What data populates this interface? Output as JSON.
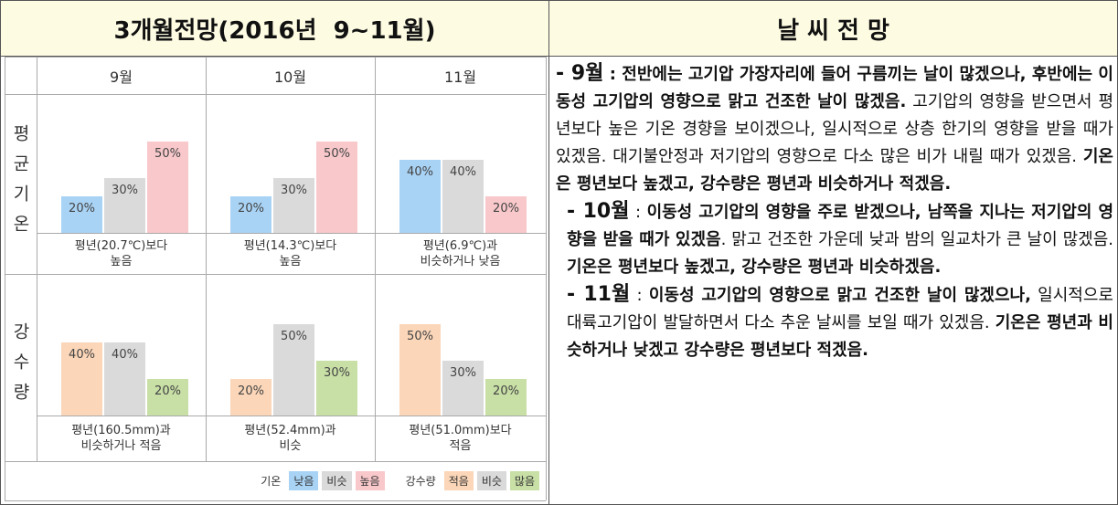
{
  "header": {
    "left": "3개월전망(2016년  9~11월)",
    "right": "날 씨 전 망"
  },
  "outlook": {
    "months": [
      "9월",
      "10월",
      "11월"
    ],
    "rows": [
      {
        "label": "평균기온",
        "legend": 0,
        "cells": [
          {
            "values": [
              20,
              30,
              50
            ],
            "value_labels": [
              "20%",
              "30%",
              "50%"
            ],
            "caption": "평년(20.7℃)보다\n높음"
          },
          {
            "values": [
              20,
              30,
              50
            ],
            "value_labels": [
              "20%",
              "30%",
              "50%"
            ],
            "caption": "평년(14.3℃)보다\n높음"
          },
          {
            "values": [
              40,
              40,
              20
            ],
            "value_labels": [
              "40%",
              "40%",
              "20%"
            ],
            "caption": "평년(6.9℃)과\n비슷하거나 낮음"
          }
        ]
      },
      {
        "label": "강수량",
        "legend": 1,
        "cells": [
          {
            "values": [
              40,
              40,
              20
            ],
            "value_labels": [
              "40%",
              "40%",
              "20%"
            ],
            "caption": "평년(160.5mm)과\n비슷하거나 적음"
          },
          {
            "values": [
              20,
              50,
              30
            ],
            "value_labels": [
              "20%",
              "50%",
              "30%"
            ],
            "caption": "평년(52.4mm)과\n비슷"
          },
          {
            "values": [
              50,
              30,
              20
            ],
            "value_labels": [
              "50%",
              "30%",
              "20%"
            ],
            "caption": "평년(51.0mm)보다\n적음"
          }
        ]
      }
    ],
    "legend": [
      {
        "title": "기온",
        "items": [
          {
            "label": "낮음",
            "color": "#a9d3f5"
          },
          {
            "label": "비슷",
            "color": "#dadada"
          },
          {
            "label": "높음",
            "color": "#f8c8cb"
          }
        ]
      },
      {
        "title": "강수량",
        "items": [
          {
            "label": "적음",
            "color": "#fbd6b8"
          },
          {
            "label": "비슷",
            "color": "#dadada"
          },
          {
            "label": "많음",
            "color": "#c8dfa6"
          }
        ]
      }
    ]
  },
  "text": [
    [
      {
        "text": "- 9월",
        "style": "month"
      },
      {
        "text": " : 전반에는 고기압 가장자리에 들어 구름끼는 날이 많겠으나, 후반에는 이동성 고기압의 영향으로 맑고 건조한 날이 많겠음.",
        "style": "bold"
      },
      {
        "text": " 고기압의 영향을 받으면서 평년보다 높은 기온 경향을 보이겠으나, 일시적으로 상층 한기의 영향을 받을 때가 있겠음. 대기불안정과 저기압의 영향으로 다소 많은 비가 내릴 때가 있겠음. ",
        "style": "normal"
      },
      {
        "text": "기온은 평년보다 높겠고, 강수량은 평년과 비슷하거나 적겠음.",
        "style": "bold"
      }
    ],
    [
      {
        "text": "- 10월",
        "style": "month"
      },
      {
        "text": " : ",
        "style": "normal"
      },
      {
        "text": "이동성 고기압의 영향을 주로 받겠으나, 남쪽을 지나는 저기압의 영향을 받을 때가 있겠음",
        "style": "bold"
      },
      {
        "text": ". 맑고 건조한 가운데 낮과 밤의 일교차가 큰 날이 많겠음. ",
        "style": "normal"
      },
      {
        "text": "기온은 평년보다 높겠고, 강수량은 평년과 비슷하겠음.",
        "style": "bold"
      }
    ],
    [
      {
        "text": "- 11월",
        "style": "month"
      },
      {
        "text": " : ",
        "style": "normal"
      },
      {
        "text": "이동성 고기압의 영향으로 맑고 건조한 날이 많겠으나,",
        "style": "bold"
      },
      {
        "text": " 일시적으로 대륙고기압이 발달하면서 다소 추운 날씨를 보일 때가 있겠음. ",
        "style": "normal"
      },
      {
        "text": "기온은 평년과 비슷하거나 낮겠고 강수량은 평년보다 적겠음.",
        "style": "bold"
      }
    ]
  ]
}
